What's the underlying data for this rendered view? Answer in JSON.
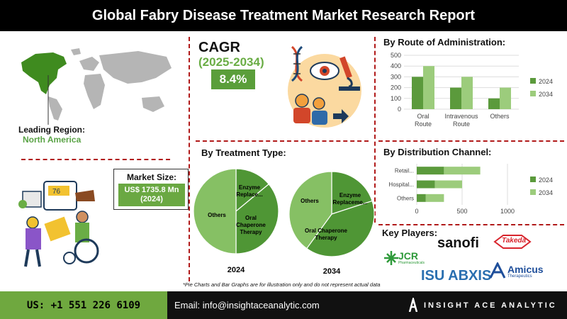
{
  "header": {
    "title": "Global Fabry Disease Treatment Market Research Report"
  },
  "leading_region": {
    "label": "Leading Region:",
    "value": "North America"
  },
  "cagr": {
    "title": "CAGR",
    "years": "(2025-2034)",
    "value": "8.4%"
  },
  "market_size": {
    "label": "Market Size:",
    "value_line1": "US$ 1735.8 Mn",
    "value_line2": "(2024)"
  },
  "colors": {
    "dark_green": "#5b9a3c",
    "light_green": "#9ccc7c",
    "brand_green": "#6fa83f",
    "divider_red": "#b11a1a"
  },
  "icons": [
    "world-map-icon",
    "dna-icon",
    "eye-icon",
    "microscope-icon",
    "patients-icon",
    "doctor-patient-illustration"
  ],
  "treatment": {
    "title": "By Treatment Type:",
    "year_2024": "2024",
    "year_2034": "2034",
    "labels_2024": [
      "Enzyme Replace...",
      "Oral Chaperone Therapy",
      "Others"
    ],
    "labels_2034": [
      "Enzyme Replaceme...",
      "Oral Chaperone Therapy",
      "Others"
    ]
  },
  "route": {
    "title": "By Route of Administration:"
  },
  "distribution": {
    "title": "By Distribution Channel:"
  },
  "key_players": {
    "title": "Key Players:",
    "names": [
      "JCR",
      "sanofi",
      "Takeda",
      "ISU ABXIS",
      "Amicus"
    ],
    "subtitles": [
      "Pharmaceuticals",
      "Therapeutics"
    ]
  },
  "disclaimer": "*Pie Charts and Bar Graphs are for illustration only and do not represent actual data",
  "footer": {
    "phone": "US: +1 551 226 6109",
    "email": "Email: info@insightaceanalytic.com",
    "brand": "INSIGHT ACE ANALYTIC"
  },
  "chart_data": [
    {
      "type": "pie",
      "id": "treatment-2024",
      "title": "2024",
      "labels": [
        "Enzyme Replacement Therapy",
        "Oral Chaperone Therapy",
        "Others"
      ],
      "values": [
        14,
        36,
        50
      ]
    },
    {
      "type": "pie",
      "id": "treatment-2034",
      "title": "2034",
      "labels": [
        "Enzyme Replacement Therapy",
        "Oral Chaperone Therapy",
        "Others"
      ],
      "values": [
        20,
        40,
        40
      ]
    },
    {
      "type": "bar",
      "id": "route",
      "orientation": "vertical",
      "categories": [
        "Oral Route",
        "Intravenous Route",
        "Others"
      ],
      "series": [
        {
          "name": "2024",
          "values": [
            300,
            200,
            100
          ]
        },
        {
          "name": "2034",
          "values": [
            400,
            300,
            200
          ]
        }
      ],
      "ylim": [
        0,
        500
      ],
      "yticks": [
        "0",
        "100",
        "200",
        "300",
        "400",
        "500"
      ],
      "legend": "right"
    },
    {
      "type": "bar",
      "id": "distribution",
      "orientation": "horizontal",
      "stacked": true,
      "categories": [
        "Retail...",
        "Hospital...",
        "Others"
      ],
      "series": [
        {
          "name": "2024",
          "values": [
            300,
            200,
            100
          ]
        },
        {
          "name": "2034",
          "values": [
            400,
            300,
            200
          ]
        }
      ],
      "xlim": [
        0,
        1000
      ],
      "xticks": [
        "0",
        "500",
        "1000"
      ],
      "legend": "right"
    }
  ]
}
